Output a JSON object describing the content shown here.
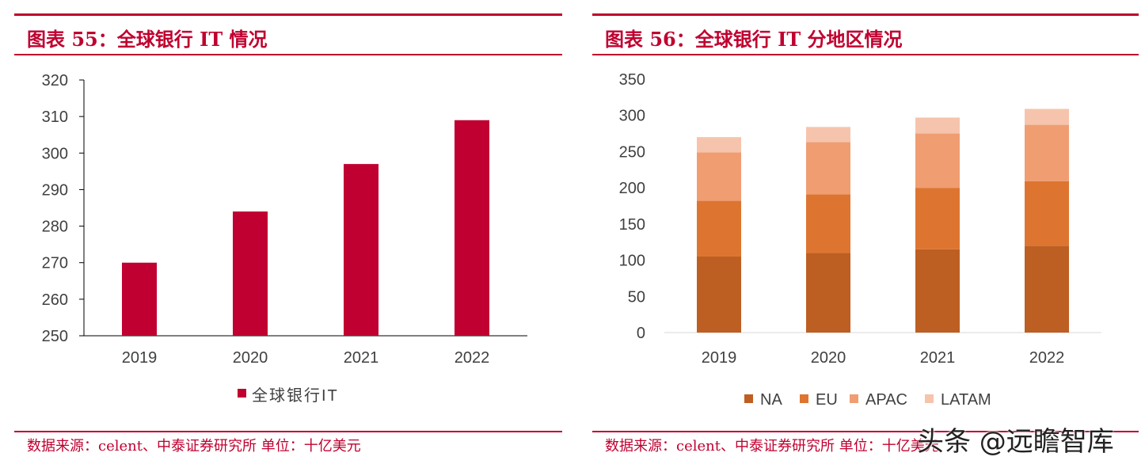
{
  "left": {
    "title": "图表 55：全球银行 IT 情况",
    "source": "数据来源：celent、中泰证券研究所 单位：十亿美元"
  },
  "right": {
    "title": "图表 56：全球银行 IT 分地区情况",
    "source": "数据来源：celent、中泰证券研究所 单位：十亿美元"
  },
  "watermark": "头条 @远瞻智库",
  "colors": {
    "accent": "#c0002f",
    "bar": "#c00030",
    "NA": "#bd5f23",
    "EU": "#dd7530",
    "APAC": "#f09d72",
    "LATAM": "#f6c4ac"
  },
  "chart_data": [
    {
      "type": "bar",
      "categories": [
        "2019",
        "2020",
        "2021",
        "2022"
      ],
      "series": [
        {
          "name": "全球银行IT",
          "values": [
            270,
            284,
            297,
            309
          ]
        }
      ],
      "ylim": [
        250,
        320
      ],
      "yticks": [
        250,
        260,
        270,
        280,
        290,
        300,
        310,
        320
      ],
      "legend": "bottom",
      "grid": false
    },
    {
      "type": "bar",
      "stacked": true,
      "categories": [
        "2019",
        "2020",
        "2021",
        "2022"
      ],
      "series": [
        {
          "name": "NA",
          "values": [
            105,
            110,
            115,
            120
          ]
        },
        {
          "name": "EU",
          "values": [
            77,
            81,
            85,
            89
          ]
        },
        {
          "name": "APAC",
          "values": [
            67,
            72,
            75,
            78
          ]
        },
        {
          "name": "LATAM",
          "values": [
            21,
            21,
            22,
            22
          ]
        }
      ],
      "ylim": [
        0,
        350
      ],
      "yticks": [
        0,
        50,
        100,
        150,
        200,
        250,
        300,
        350
      ],
      "legend": "bottom",
      "grid": false
    }
  ]
}
